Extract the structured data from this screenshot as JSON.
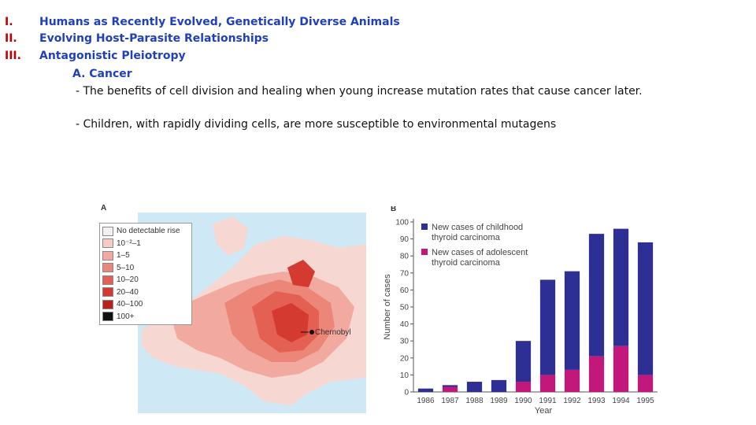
{
  "outline": [
    {
      "num": "I.",
      "text": "Humans as Recently Evolved, Genetically Diverse Animals"
    },
    {
      "num": "II.",
      "text": "Evolving Host-Parasite Relationships"
    },
    {
      "num": "III.",
      "text": "Antagonistic Pleiotropy"
    }
  ],
  "subheading": "A. Cancer",
  "bullets": [
    "- The benefits of cell division and healing when young increase mutation rates that cause cancer later.",
    "- Children, with rapidly dividing cells, are more susceptible to environmental mutagens"
  ],
  "map": {
    "panel_label": "A",
    "location_label": "Chernobyl",
    "legend": [
      {
        "label": "No detectable rise",
        "color": "#f4f0ef"
      },
      {
        "label": "10⁻²–1",
        "color": "#f6cbc3"
      },
      {
        "label": "1–5",
        "color": "#f2aaa0"
      },
      {
        "label": "5–10",
        "color": "#ec8679"
      },
      {
        "label": "10–20",
        "color": "#e36053"
      },
      {
        "label": "20–40",
        "color": "#d53a30"
      },
      {
        "label": "40–100",
        "color": "#b8201c"
      },
      {
        "label": "100+",
        "color": "#111111"
      }
    ]
  },
  "chart_data": {
    "type": "bar",
    "stacked": true,
    "panel_label": "B",
    "categories": [
      "1986",
      "1987",
      "1988",
      "1989",
      "1990",
      "1991",
      "1992",
      "1993",
      "1994",
      "1995"
    ],
    "series": [
      {
        "name": "New cases of adolescent thyroid carcinoma",
        "color": "#c2187b",
        "values": [
          0,
          3,
          0,
          0,
          6,
          10,
          13,
          21,
          27,
          10
        ]
      },
      {
        "name": "New cases of childhood thyroid carcinoma",
        "color": "#2e2f94",
        "values": [
          2,
          1,
          6,
          7,
          24,
          56,
          58,
          72,
          69,
          78
        ]
      }
    ],
    "legend_lines": [
      [
        "New cases of childhood",
        "thyroid carcinoma"
      ],
      [
        "New cases of adolescent",
        "thyroid carcinoma"
      ]
    ],
    "y_ticks": [
      "0",
      "10",
      "20",
      "30",
      "40",
      "50",
      "60",
      "70",
      "80",
      "90",
      "100"
    ],
    "ylim": [
      0,
      100
    ],
    "xlabel": "Year",
    "ylabel": "Number of cases",
    "title": ""
  }
}
